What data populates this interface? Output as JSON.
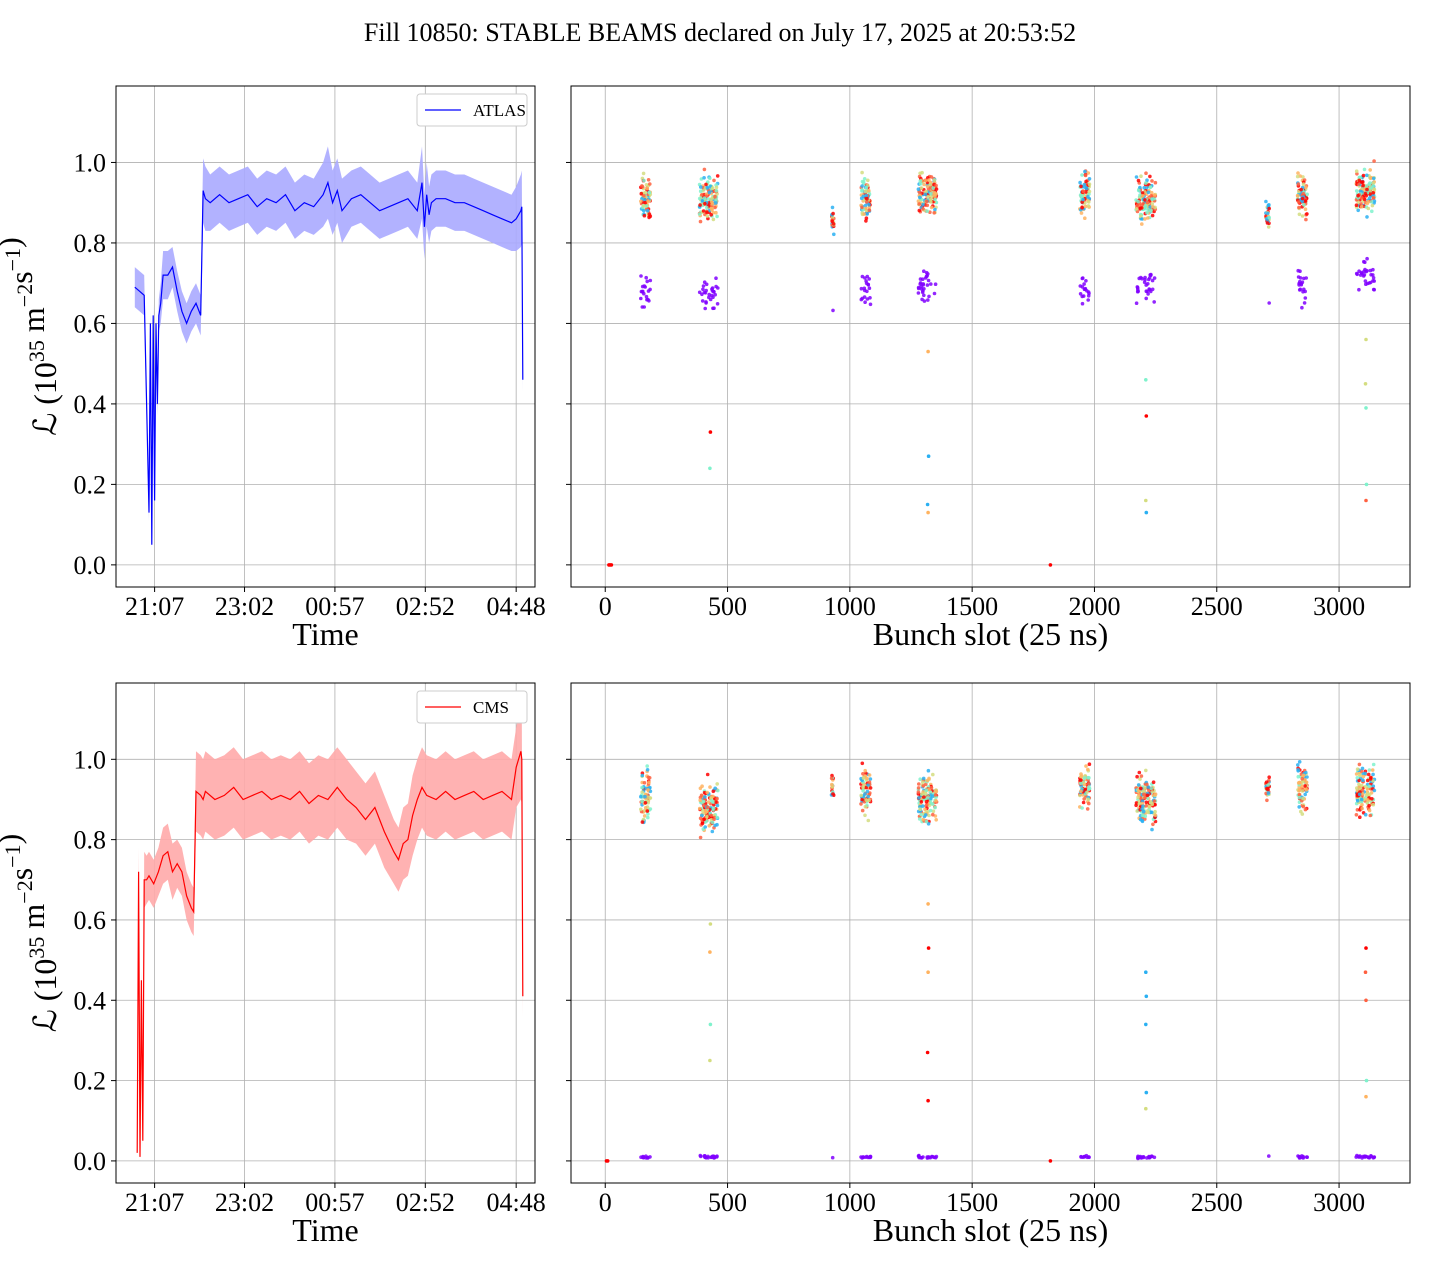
{
  "title": "Fill 10850: STABLE BEAMS declared on July 17, 2025 at 20:53:52",
  "colors": {
    "atlas": "#0000ff",
    "atlas_band": "#aaaaff",
    "cms": "#ff0000",
    "cms_band": "#ffaaaa",
    "grid": "#b0b0b0",
    "bunch_palette": [
      "#8000ff",
      "#2ab0f2",
      "#7ff2cc",
      "#d4dd80",
      "#ffb360",
      "#ff6040",
      "#ff0000"
    ]
  },
  "chart_data": [
    {
      "type": "line",
      "legend": "ATLAS",
      "legend_position": "top-right",
      "xlabel": "Time",
      "ylabel_main": "ℒ (10",
      "ylabel_exp": "35",
      "ylabel_unit": " m",
      "ylabel_exp2": "−2",
      "ylabel_unit2": "s",
      "ylabel_exp3": "−1",
      "ylabel_close": ")",
      "xtick_labels": [
        "21:07",
        "23:02",
        "00:57",
        "02:52",
        "04:48"
      ],
      "xticks_hours": [
        0.22,
        2.13,
        4.05,
        5.97,
        7.9
      ],
      "xlim_hours": [
        -0.6,
        8.3
      ],
      "ylim": [
        -0.055,
        1.19
      ],
      "yticks": [
        0.0,
        0.2,
        0.4,
        0.6,
        0.8,
        1.0
      ],
      "ytick_labels": [
        "0.0",
        "0.2",
        "0.4",
        "0.6",
        "0.8",
        "1.0"
      ],
      "grid": true,
      "x_hours": [
        -0.2,
        -0.1,
        0.0,
        0.1,
        0.13,
        0.16,
        0.19,
        0.22,
        0.25,
        0.28,
        0.31,
        0.35,
        0.4,
        0.5,
        0.6,
        0.7,
        0.8,
        0.9,
        1.0,
        1.1,
        1.2,
        1.25,
        1.3,
        1.4,
        1.6,
        1.8,
        2.0,
        2.2,
        2.4,
        2.6,
        2.8,
        3.0,
        3.2,
        3.4,
        3.6,
        3.8,
        3.9,
        4.0,
        4.1,
        4.2,
        4.4,
        4.6,
        4.8,
        5.0,
        5.2,
        5.4,
        5.6,
        5.8,
        5.9,
        5.95,
        6.0,
        6.05,
        6.1,
        6.2,
        6.4,
        6.6,
        6.8,
        7.0,
        7.2,
        7.4,
        7.6,
        7.8,
        7.9,
        8.0,
        8.02,
        8.04
      ],
      "values": [
        0.69,
        0.68,
        0.67,
        0.13,
        0.6,
        0.05,
        0.62,
        0.16,
        0.6,
        0.4,
        0.62,
        0.65,
        0.72,
        0.72,
        0.74,
        0.68,
        0.63,
        0.6,
        0.63,
        0.65,
        0.62,
        0.93,
        0.91,
        0.9,
        0.92,
        0.9,
        0.91,
        0.92,
        0.89,
        0.91,
        0.9,
        0.92,
        0.88,
        0.9,
        0.89,
        0.92,
        0.95,
        0.9,
        0.93,
        0.88,
        0.91,
        0.92,
        0.9,
        0.88,
        0.89,
        0.9,
        0.91,
        0.88,
        0.95,
        0.84,
        0.92,
        0.87,
        0.9,
        0.91,
        0.91,
        0.9,
        0.9,
        0.89,
        0.88,
        0.87,
        0.86,
        0.85,
        0.86,
        0.88,
        0.89,
        0.46
      ],
      "band_half_width": [
        0.05,
        0.05,
        0.05,
        0.02,
        0.03,
        0.01,
        0.03,
        0.02,
        0.03,
        0.03,
        0.04,
        0.05,
        0.06,
        0.06,
        0.05,
        0.05,
        0.05,
        0.05,
        0.05,
        0.05,
        0.05,
        0.08,
        0.08,
        0.07,
        0.07,
        0.07,
        0.07,
        0.07,
        0.07,
        0.07,
        0.07,
        0.07,
        0.07,
        0.07,
        0.07,
        0.08,
        0.09,
        0.08,
        0.08,
        0.08,
        0.07,
        0.07,
        0.07,
        0.07,
        0.07,
        0.07,
        0.07,
        0.07,
        0.09,
        0.08,
        0.08,
        0.07,
        0.07,
        0.07,
        0.07,
        0.07,
        0.07,
        0.07,
        0.07,
        0.07,
        0.07,
        0.07,
        0.08,
        0.09,
        0.09,
        0.03
      ]
    },
    {
      "type": "scatter",
      "xlabel": "Bunch slot (25 ns)",
      "xlim": [
        -140,
        3290
      ],
      "xticks": [
        0,
        500,
        1000,
        1500,
        2000,
        2500,
        3000
      ],
      "ylim": [
        -0.055,
        1.19
      ],
      "yticks": [
        0.0,
        0.2,
        0.4,
        0.6,
        0.8,
        1.0
      ],
      "grid": true,
      "bunch_trains": [
        {
          "start": 145,
          "end": 185,
          "center": 0.91,
          "spread": 0.05,
          "low_center": 0.68,
          "low_count": 20
        },
        {
          "start": 385,
          "end": 460,
          "center": 0.91,
          "spread": 0.05,
          "low_center": 0.67,
          "low_count": 30
        },
        {
          "start": 925,
          "end": 935,
          "center": 0.86,
          "spread": 0.03,
          "low_center": 0.63,
          "low_count": 1
        },
        {
          "start": 1045,
          "end": 1085,
          "center": 0.91,
          "spread": 0.05,
          "low_center": 0.68,
          "low_count": 20
        },
        {
          "start": 1280,
          "end": 1355,
          "center": 0.92,
          "spread": 0.05,
          "low_center": 0.69,
          "low_count": 30
        },
        {
          "start": 1940,
          "end": 1980,
          "center": 0.92,
          "spread": 0.05,
          "low_center": 0.68,
          "low_count": 18
        },
        {
          "start": 2170,
          "end": 2250,
          "center": 0.91,
          "spread": 0.05,
          "low_center": 0.69,
          "low_count": 30
        },
        {
          "start": 2700,
          "end": 2715,
          "center": 0.87,
          "spread": 0.03,
          "low_center": 0.66,
          "low_count": 1
        },
        {
          "start": 2830,
          "end": 2870,
          "center": 0.92,
          "spread": 0.05,
          "low_center": 0.69,
          "low_count": 20
        },
        {
          "start": 3070,
          "end": 3145,
          "center": 0.93,
          "spread": 0.05,
          "low_center": 0.72,
          "low_count": 30
        }
      ],
      "outliers": [
        {
          "x": 430,
          "y": 0.33
        },
        {
          "x": 428,
          "y": 0.24
        },
        {
          "x": 1320,
          "y": 0.53
        },
        {
          "x": 1322,
          "y": 0.27
        },
        {
          "x": 1318,
          "y": 0.15
        },
        {
          "x": 1320,
          "y": 0.13
        },
        {
          "x": 2210,
          "y": 0.46
        },
        {
          "x": 2212,
          "y": 0.37
        },
        {
          "x": 2210,
          "y": 0.16
        },
        {
          "x": 2212,
          "y": 0.13
        },
        {
          "x": 3110,
          "y": 0.56
        },
        {
          "x": 3108,
          "y": 0.45
        },
        {
          "x": 3110,
          "y": 0.39
        },
        {
          "x": 3112,
          "y": 0.2
        },
        {
          "x": 3110,
          "y": 0.16
        },
        {
          "x": 1820,
          "y": 0.0
        },
        {
          "x": 15,
          "y": 0.0
        },
        {
          "x": 20,
          "y": 0.0
        },
        {
          "x": 25,
          "y": 0.0
        }
      ]
    },
    {
      "type": "line",
      "legend": "CMS",
      "legend_position": "top-right",
      "xlabel": "Time",
      "ylabel_main": "ℒ (10",
      "ylabel_exp": "35",
      "ylabel_unit": " m",
      "ylabel_exp2": "−2",
      "ylabel_unit2": "s",
      "ylabel_exp3": "−1",
      "ylabel_close": ")",
      "xtick_labels": [
        "21:07",
        "23:02",
        "00:57",
        "02:52",
        "04:48"
      ],
      "xticks_hours": [
        0.22,
        2.13,
        4.05,
        5.97,
        7.9
      ],
      "xlim_hours": [
        -0.6,
        8.3
      ],
      "ylim": [
        -0.055,
        1.19
      ],
      "yticks": [
        0.0,
        0.2,
        0.4,
        0.6,
        0.8,
        1.0
      ],
      "ytick_labels": [
        "0.0",
        "0.2",
        "0.4",
        "0.6",
        "0.8",
        "1.0"
      ],
      "grid": true,
      "x_hours": [
        -0.15,
        -0.12,
        -0.09,
        -0.06,
        -0.03,
        0.0,
        0.05,
        0.1,
        0.2,
        0.3,
        0.4,
        0.5,
        0.6,
        0.7,
        0.8,
        0.9,
        1.0,
        1.05,
        1.1,
        1.2,
        1.25,
        1.3,
        1.5,
        1.7,
        1.9,
        2.1,
        2.3,
        2.5,
        2.7,
        2.9,
        3.1,
        3.3,
        3.5,
        3.7,
        3.9,
        4.1,
        4.3,
        4.5,
        4.7,
        4.9,
        5.1,
        5.3,
        5.4,
        5.5,
        5.6,
        5.7,
        5.8,
        5.9,
        6.0,
        6.2,
        6.4,
        6.6,
        6.8,
        7.0,
        7.2,
        7.4,
        7.6,
        7.8,
        7.9,
        8.0,
        8.02,
        8.04
      ],
      "values": [
        0.02,
        0.72,
        0.01,
        0.45,
        0.05,
        0.7,
        0.7,
        0.71,
        0.69,
        0.72,
        0.76,
        0.77,
        0.72,
        0.74,
        0.72,
        0.66,
        0.63,
        0.62,
        0.92,
        0.91,
        0.9,
        0.92,
        0.9,
        0.91,
        0.93,
        0.9,
        0.91,
        0.92,
        0.9,
        0.91,
        0.9,
        0.92,
        0.89,
        0.91,
        0.9,
        0.93,
        0.9,
        0.88,
        0.85,
        0.88,
        0.82,
        0.77,
        0.75,
        0.79,
        0.8,
        0.86,
        0.9,
        0.93,
        0.91,
        0.9,
        0.92,
        0.9,
        0.91,
        0.92,
        0.9,
        0.91,
        0.92,
        0.9,
        0.98,
        1.02,
        1.0,
        0.41
      ],
      "band_half_width": [
        0.01,
        0.06,
        0.01,
        0.03,
        0.02,
        0.07,
        0.06,
        0.06,
        0.06,
        0.06,
        0.07,
        0.07,
        0.07,
        0.06,
        0.06,
        0.06,
        0.06,
        0.06,
        0.1,
        0.1,
        0.1,
        0.1,
        0.1,
        0.1,
        0.1,
        0.1,
        0.1,
        0.1,
        0.1,
        0.1,
        0.1,
        0.1,
        0.1,
        0.1,
        0.1,
        0.1,
        0.1,
        0.09,
        0.09,
        0.09,
        0.09,
        0.08,
        0.08,
        0.09,
        0.09,
        0.1,
        0.1,
        0.1,
        0.1,
        0.1,
        0.1,
        0.1,
        0.1,
        0.1,
        0.1,
        0.1,
        0.1,
        0.1,
        0.1,
        0.12,
        0.11,
        0.05
      ]
    },
    {
      "type": "scatter",
      "xlabel": "Bunch slot (25 ns)",
      "xlim": [
        -140,
        3290
      ],
      "xticks": [
        0,
        500,
        1000,
        1500,
        2000,
        2500,
        3000
      ],
      "ylim": [
        -0.055,
        1.19
      ],
      "yticks": [
        0.0,
        0.2,
        0.4,
        0.6,
        0.8,
        1.0
      ],
      "grid": true,
      "bunch_trains": [
        {
          "start": 145,
          "end": 185,
          "center": 0.91,
          "spread": 0.06,
          "low_center": 0.01,
          "low_count": 12
        },
        {
          "start": 385,
          "end": 460,
          "center": 0.88,
          "spread": 0.06,
          "low_center": 0.01,
          "low_count": 20
        },
        {
          "start": 925,
          "end": 935,
          "center": 0.93,
          "spread": 0.03,
          "low_center": 0.01,
          "low_count": 1
        },
        {
          "start": 1045,
          "end": 1085,
          "center": 0.92,
          "spread": 0.06,
          "low_center": 0.01,
          "low_count": 12
        },
        {
          "start": 1280,
          "end": 1355,
          "center": 0.9,
          "spread": 0.06,
          "low_center": 0.01,
          "low_count": 20
        },
        {
          "start": 1940,
          "end": 1980,
          "center": 0.93,
          "spread": 0.05,
          "low_center": 0.01,
          "low_count": 10
        },
        {
          "start": 2170,
          "end": 2250,
          "center": 0.9,
          "spread": 0.06,
          "low_center": 0.01,
          "low_count": 20
        },
        {
          "start": 2700,
          "end": 2715,
          "center": 0.93,
          "spread": 0.03,
          "low_center": 0.01,
          "low_count": 1
        },
        {
          "start": 2830,
          "end": 2870,
          "center": 0.93,
          "spread": 0.06,
          "low_center": 0.01,
          "low_count": 12
        },
        {
          "start": 3070,
          "end": 3145,
          "center": 0.92,
          "spread": 0.06,
          "low_center": 0.01,
          "low_count": 20
        }
      ],
      "outliers": [
        {
          "x": 430,
          "y": 0.59
        },
        {
          "x": 428,
          "y": 0.52
        },
        {
          "x": 430,
          "y": 0.34
        },
        {
          "x": 428,
          "y": 0.25
        },
        {
          "x": 1320,
          "y": 0.64
        },
        {
          "x": 1322,
          "y": 0.53
        },
        {
          "x": 1320,
          "y": 0.47
        },
        {
          "x": 1318,
          "y": 0.27
        },
        {
          "x": 1320,
          "y": 0.15
        },
        {
          "x": 2210,
          "y": 0.47
        },
        {
          "x": 2212,
          "y": 0.41
        },
        {
          "x": 2210,
          "y": 0.34
        },
        {
          "x": 2212,
          "y": 0.17
        },
        {
          "x": 2210,
          "y": 0.13
        },
        {
          "x": 3110,
          "y": 0.53
        },
        {
          "x": 3108,
          "y": 0.47
        },
        {
          "x": 3110,
          "y": 0.4
        },
        {
          "x": 3112,
          "y": 0.2
        },
        {
          "x": 3110,
          "y": 0.16
        },
        {
          "x": 1820,
          "y": 0.0
        },
        {
          "x": 5,
          "y": 0.0
        },
        {
          "x": 10,
          "y": 0.0
        }
      ]
    }
  ]
}
